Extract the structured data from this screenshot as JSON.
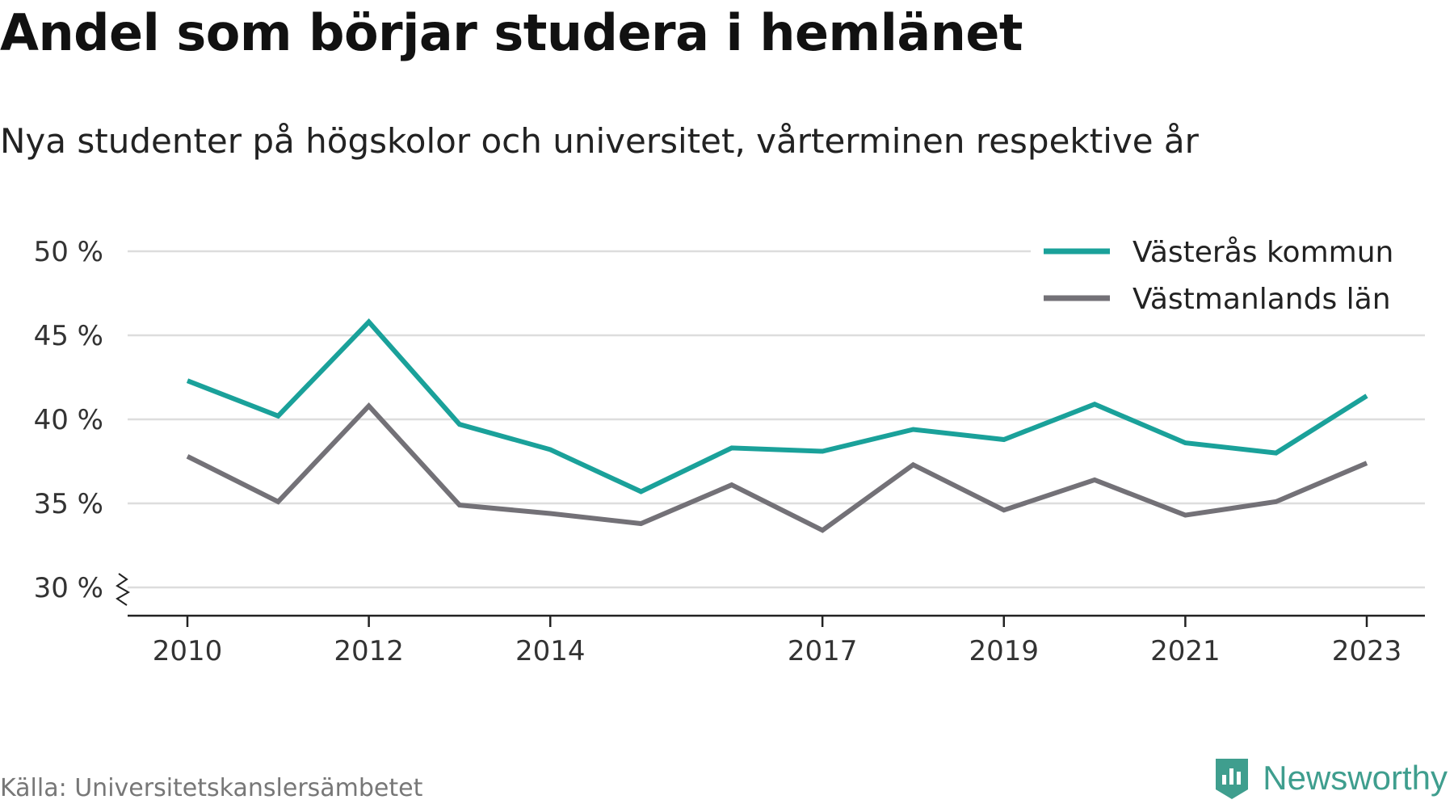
{
  "header": {
    "title": "Andel som börjar studera i hemlänet",
    "subtitle": "Nya studenter på högskolor och universitet, vårterminen respektive år"
  },
  "footer": {
    "source": "Källa: Universitetskanslersämbetet",
    "brand": "Newsworthy",
    "brand_icon": "newsworthy-logo-icon",
    "brand_color": "#3f9e8e"
  },
  "chart_data": {
    "type": "line",
    "x": [
      2010,
      2011,
      2012,
      2013,
      2014,
      2015,
      2016,
      2017,
      2018,
      2019,
      2020,
      2021,
      2022,
      2023
    ],
    "x_tick_labels": [
      "2010",
      "2012",
      "2014",
      "2017",
      "2019",
      "2021",
      "2023"
    ],
    "y_tick_labels": [
      "30 %",
      "35 %",
      "40 %",
      "45 %",
      "50 %"
    ],
    "ylim": [
      30,
      50
    ],
    "y_axis_break": true,
    "grid": true,
    "legend_position": "top-right",
    "series": [
      {
        "name": "Västerås kommun",
        "color": "#1aa19a",
        "values": [
          42.3,
          40.2,
          45.8,
          39.7,
          38.2,
          35.7,
          38.3,
          38.1,
          39.4,
          38.8,
          40.9,
          38.6,
          38.0,
          41.4
        ]
      },
      {
        "name": "Västmanlands län",
        "color": "#737177",
        "values": [
          37.8,
          35.1,
          40.8,
          34.9,
          34.4,
          33.8,
          36.1,
          33.4,
          37.3,
          34.6,
          36.4,
          34.3,
          35.1,
          37.4
        ]
      }
    ]
  }
}
